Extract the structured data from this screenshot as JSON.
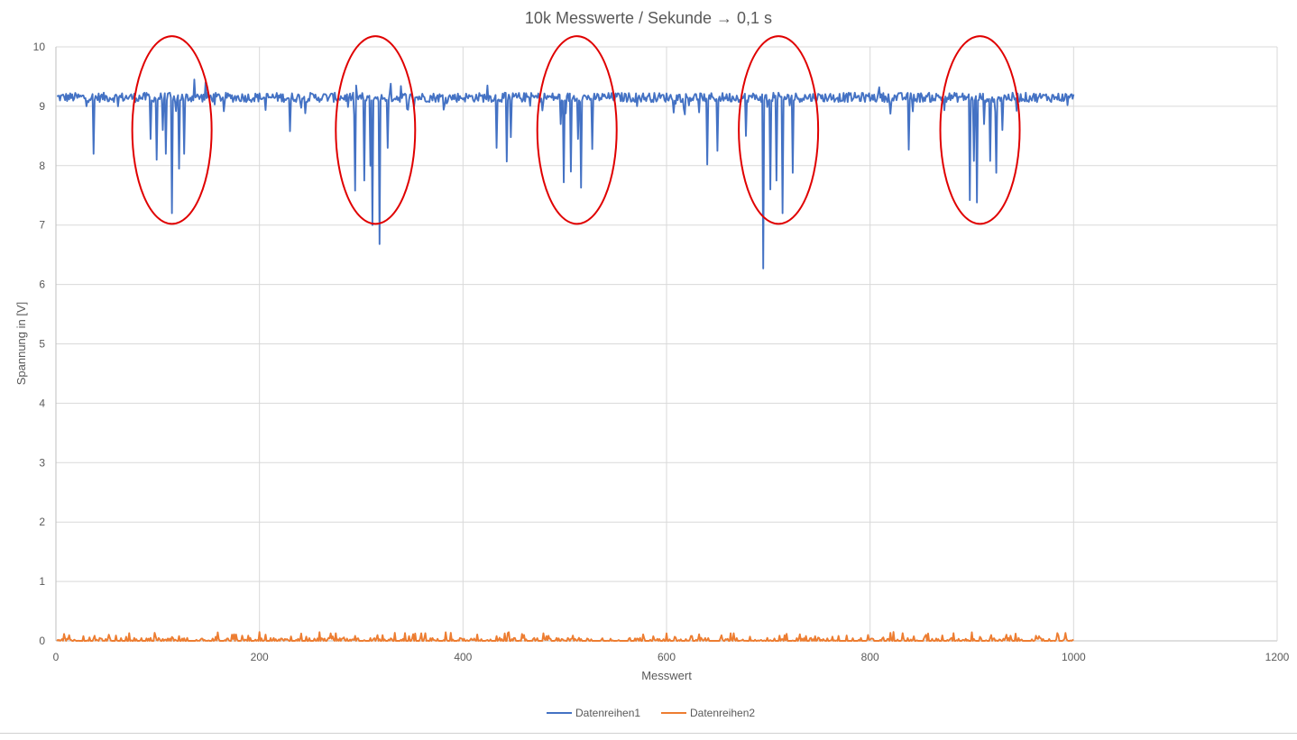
{
  "chart_data": {
    "type": "line",
    "title": "10k Messwerte / Sekunde → 0,1 s",
    "xlabel": "Messwert",
    "ylabel": "Spannung in [V]",
    "xlim": [
      0,
      1200
    ],
    "ylim": [
      0,
      10
    ],
    "x_ticks": [
      0,
      200,
      400,
      600,
      800,
      1000,
      1200
    ],
    "y_ticks": [
      0,
      1,
      2,
      3,
      4,
      5,
      6,
      7,
      8,
      9,
      10
    ],
    "grid": "horizontal and vertical",
    "legend_position": "bottom",
    "x_points_per_series": 1000,
    "series": [
      {
        "name": "Datenreihen1",
        "color": "#4472c4",
        "baseline": 9.15,
        "noise_band": [
          9.0,
          9.3
        ],
        "dips": [
          {
            "x": 37,
            "y": 8.2
          },
          {
            "x": 93,
            "y": 8.45
          },
          {
            "x": 99,
            "y": 8.1
          },
          {
            "x": 105,
            "y": 8.6
          },
          {
            "x": 108,
            "y": 8.2
          },
          {
            "x": 114,
            "y": 7.2
          },
          {
            "x": 121,
            "y": 7.95
          },
          {
            "x": 126,
            "y": 8.2
          },
          {
            "x": 230,
            "y": 8.58
          },
          {
            "x": 294,
            "y": 7.58
          },
          {
            "x": 303,
            "y": 7.75
          },
          {
            "x": 309,
            "y": 8.0
          },
          {
            "x": 311,
            "y": 7.0
          },
          {
            "x": 318,
            "y": 6.68
          },
          {
            "x": 326,
            "y": 8.3
          },
          {
            "x": 433,
            "y": 8.3
          },
          {
            "x": 443,
            "y": 8.07
          },
          {
            "x": 447,
            "y": 8.48
          },
          {
            "x": 496,
            "y": 8.7
          },
          {
            "x": 499,
            "y": 7.72
          },
          {
            "x": 506,
            "y": 7.9
          },
          {
            "x": 513,
            "y": 8.45
          },
          {
            "x": 516,
            "y": 7.63
          },
          {
            "x": 527,
            "y": 8.28
          },
          {
            "x": 640,
            "y": 8.02
          },
          {
            "x": 650,
            "y": 8.25
          },
          {
            "x": 678,
            "y": 8.5
          },
          {
            "x": 695,
            "y": 6.27
          },
          {
            "x": 702,
            "y": 7.6
          },
          {
            "x": 708,
            "y": 7.75
          },
          {
            "x": 714,
            "y": 7.2
          },
          {
            "x": 724,
            "y": 7.88
          },
          {
            "x": 838,
            "y": 8.27
          },
          {
            "x": 898,
            "y": 7.42
          },
          {
            "x": 902,
            "y": 8.08
          },
          {
            "x": 905,
            "y": 7.38
          },
          {
            "x": 912,
            "y": 8.7
          },
          {
            "x": 918,
            "y": 8.08
          },
          {
            "x": 924,
            "y": 7.88
          },
          {
            "x": 930,
            "y": 8.6
          }
        ],
        "spikes": [
          {
            "x": 136,
            "y": 9.45
          },
          {
            "x": 147,
            "y": 9.4
          },
          {
            "x": 295,
            "y": 9.35
          },
          {
            "x": 329,
            "y": 9.38
          },
          {
            "x": 339,
            "y": 9.34
          },
          {
            "x": 424,
            "y": 9.35
          },
          {
            "x": 809,
            "y": 9.32
          },
          {
            "x": 1000,
            "y": 9.2
          }
        ]
      },
      {
        "name": "Datenreihen2",
        "color": "#ed7d31",
        "baseline": 0.02,
        "noise_band": [
          0.0,
          0.15
        ]
      }
    ],
    "annotations": [
      {
        "shape": "ellipse",
        "color": "#e00000",
        "center_x": 114,
        "center_y": 8.6,
        "radius_x": 39,
        "radius_y": 1.58
      },
      {
        "shape": "ellipse",
        "color": "#e00000",
        "center_x": 314,
        "center_y": 8.6,
        "radius_x": 39,
        "radius_y": 1.58
      },
      {
        "shape": "ellipse",
        "color": "#e00000",
        "center_x": 512,
        "center_y": 8.6,
        "radius_x": 39,
        "radius_y": 1.58
      },
      {
        "shape": "ellipse",
        "color": "#e00000",
        "center_x": 710,
        "center_y": 8.6,
        "radius_x": 39,
        "radius_y": 1.58
      },
      {
        "shape": "ellipse",
        "color": "#e00000",
        "center_x": 908,
        "center_y": 8.6,
        "radius_x": 39,
        "radius_y": 1.58
      }
    ]
  }
}
